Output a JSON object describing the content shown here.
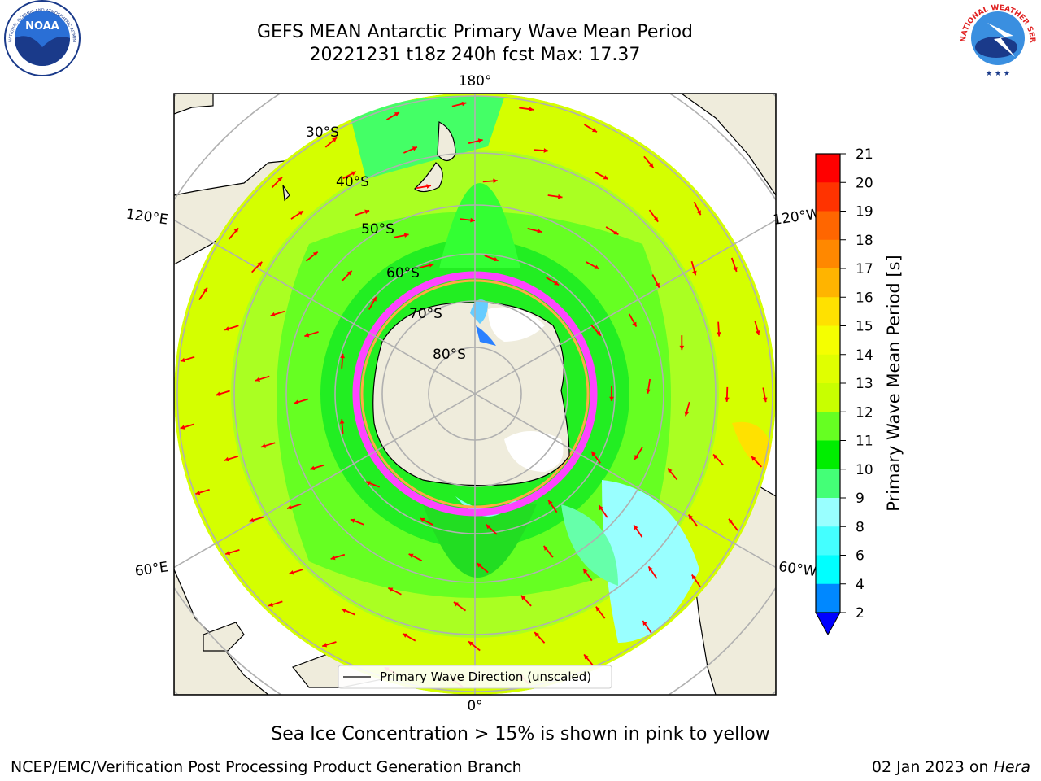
{
  "title": {
    "line1": "GEFS MEAN Antarctic Primary Wave Mean Period",
    "line2": "20221231 t18z 240h fcst   Max: 17.37"
  },
  "logos": {
    "left": {
      "icon": "noaa-logo",
      "text": "NOAA",
      "ring_text": "NATIONAL OCEANIC AND ATMOSPHERIC ADMINISTRATION · U.S. DEPARTMENT OF COMMERCE"
    },
    "right": {
      "icon": "nws-logo",
      "ring_text": "NATIONAL WEATHER SERVICE"
    }
  },
  "map": {
    "projection": "south-polar-stereographic",
    "lon_labels": [
      "180°",
      "120°E",
      "120°W",
      "60°E",
      "60°W",
      "0°"
    ],
    "lat_labels": [
      "30°S",
      "40°S",
      "50°S",
      "60°S",
      "70°S",
      "80°S"
    ],
    "legend_label": "Primary Wave Direction (unscaled)",
    "colors": {
      "land": "#efecdc",
      "ocean_outside": "#ffffff",
      "grid": "#b0b0b0",
      "arrow": "#ff0000",
      "ice": "#ff44ff"
    }
  },
  "colorbar": {
    "label": "Primary Wave Mean Period [s]",
    "ticks": [
      "21",
      "20",
      "19",
      "18",
      "17",
      "16",
      "15",
      "14",
      "13",
      "12",
      "11",
      "10",
      "9",
      "8",
      "6",
      "4",
      "2"
    ],
    "colors": [
      "#ff0000",
      "#ff3300",
      "#ff6600",
      "#ff8800",
      "#ffb400",
      "#ffe100",
      "#f5ff00",
      "#e0ff00",
      "#c8ff00",
      "#66ff22",
      "#00ee00",
      "#44ff77",
      "#99ffff",
      "#44ffff",
      "#00ffff",
      "#0088ff",
      "#0000ff"
    ]
  },
  "caption": "Sea Ice Concentration > 15% is shown in pink to yellow",
  "footer": {
    "left": "NCEP/EMC/Verification Post Processing Product Generation Branch",
    "date": "02 Jan 2023 on ",
    "host": "Hera"
  }
}
